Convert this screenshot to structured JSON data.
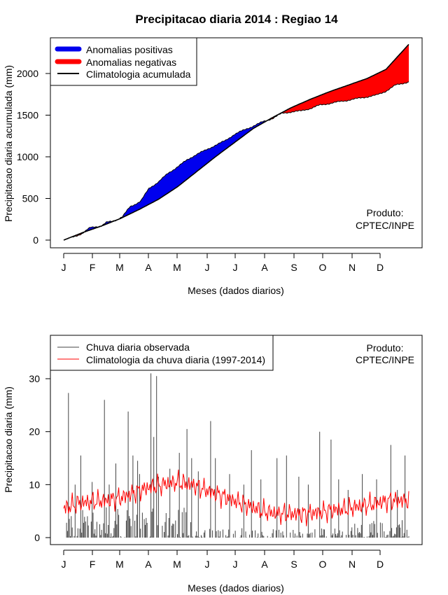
{
  "page_title": "Precipitacao diaria 2014 : Regiao 14",
  "chart_data": [
    {
      "type": "area",
      "ylabel": "Precipitacao diaria acumulada (mm)",
      "xlabel": "Meses (dados diarios)",
      "ylim": [
        0,
        2350
      ],
      "yticks": [
        0,
        500,
        1000,
        1500,
        2000
      ],
      "month_labels": [
        "J",
        "F",
        "M",
        "A",
        "M",
        "J",
        "J",
        "A",
        "S",
        "O",
        "N",
        "D"
      ],
      "legend": [
        {
          "label": "Anomalias positivas",
          "color": "#0000ee"
        },
        {
          "label": "Anomalias negativas",
          "color": "#ff0000"
        },
        {
          "label": "Climatologia acumulada",
          "color": "#000000"
        }
      ],
      "credit": [
        "Produto:",
        "CPTEC/INPE"
      ],
      "climatology_points": [
        [
          0,
          0
        ],
        [
          20,
          90
        ],
        [
          40,
          170
        ],
        [
          60,
          260
        ],
        [
          80,
          370
        ],
        [
          100,
          490
        ],
        [
          120,
          640
        ],
        [
          140,
          820
        ],
        [
          160,
          1000
        ],
        [
          180,
          1170
        ],
        [
          200,
          1340
        ],
        [
          220,
          1470
        ],
        [
          240,
          1590
        ],
        [
          260,
          1690
        ],
        [
          280,
          1780
        ],
        [
          300,
          1860
        ],
        [
          320,
          1940
        ],
        [
          340,
          2050
        ],
        [
          364,
          2350
        ]
      ],
      "observed_points": [
        [
          0,
          0
        ],
        [
          10,
          40
        ],
        [
          20,
          80
        ],
        [
          28,
          150
        ],
        [
          32,
          160
        ],
        [
          40,
          170
        ],
        [
          45,
          210
        ],
        [
          55,
          240
        ],
        [
          62,
          280
        ],
        [
          70,
          400
        ],
        [
          80,
          460
        ],
        [
          82,
          480
        ],
        [
          90,
          620
        ],
        [
          100,
          700
        ],
        [
          110,
          800
        ],
        [
          120,
          880
        ],
        [
          130,
          960
        ],
        [
          140,
          1030
        ],
        [
          150,
          1080
        ],
        [
          160,
          1140
        ],
        [
          170,
          1190
        ],
        [
          180,
          1270
        ],
        [
          190,
          1320
        ],
        [
          200,
          1370
        ],
        [
          210,
          1420
        ],
        [
          220,
          1460
        ],
        [
          230,
          1520
        ],
        [
          240,
          1540
        ],
        [
          250,
          1550
        ],
        [
          260,
          1580
        ],
        [
          270,
          1620
        ],
        [
          280,
          1640
        ],
        [
          290,
          1660
        ],
        [
          300,
          1680
        ],
        [
          310,
          1700
        ],
        [
          320,
          1720
        ],
        [
          330,
          1740
        ],
        [
          340,
          1790
        ],
        [
          350,
          1860
        ],
        [
          364,
          1900
        ]
      ]
    },
    {
      "type": "bar",
      "ylabel": "Precipitacao diaria (mm)",
      "xlabel": "Meses (dados diarios)",
      "ylim": [
        0,
        38
      ],
      "yticks": [
        0,
        10,
        20,
        30
      ],
      "month_labels": [
        "J",
        "F",
        "M",
        "A",
        "M",
        "J",
        "J",
        "A",
        "S",
        "O",
        "N",
        "D"
      ],
      "legend": [
        {
          "label": "Chuva diaria observada",
          "color": "#444444"
        },
        {
          "label": "Climatologia da chuva diaria (1997-2014)",
          "color": "#ff0000"
        }
      ],
      "credit": [
        "Produto:",
        "CPTEC/INPE"
      ],
      "peaks": [
        [
          5,
          27.3
        ],
        [
          12,
          10
        ],
        [
          18,
          15.5
        ],
        [
          30,
          10.5
        ],
        [
          43,
          26
        ],
        [
          48,
          10
        ],
        [
          55,
          14
        ],
        [
          68,
          23.8
        ],
        [
          73,
          15.5
        ],
        [
          78,
          14.5
        ],
        [
          80,
          12
        ],
        [
          92,
          31
        ],
        [
          95,
          19
        ],
        [
          98,
          30.5
        ],
        [
          100,
          11.5
        ],
        [
          112,
          13
        ],
        [
          122,
          16
        ],
        [
          130,
          20.5
        ],
        [
          135,
          15
        ],
        [
          142,
          12.5
        ],
        [
          155,
          22
        ],
        [
          160,
          15
        ],
        [
          175,
          12
        ],
        [
          190,
          10
        ],
        [
          198,
          16.5
        ],
        [
          208,
          11
        ],
        [
          225,
          15
        ],
        [
          235,
          15.5
        ],
        [
          248,
          11.5
        ],
        [
          258,
          10
        ],
        [
          270,
          20
        ],
        [
          282,
          18.5
        ],
        [
          290,
          11
        ],
        [
          300,
          9
        ],
        [
          315,
          12
        ],
        [
          330,
          11
        ],
        [
          345,
          17.5
        ],
        [
          352,
          9
        ],
        [
          360,
          15.5
        ]
      ],
      "climatology_trend": [
        [
          0,
          5.5
        ],
        [
          15,
          6.5
        ],
        [
          30,
          6.8
        ],
        [
          45,
          7.0
        ],
        [
          60,
          7.5
        ],
        [
          75,
          8.5
        ],
        [
          90,
          9.5
        ],
        [
          105,
          10
        ],
        [
          120,
          10.5
        ],
        [
          135,
          10
        ],
        [
          150,
          9
        ],
        [
          165,
          8
        ],
        [
          180,
          7
        ],
        [
          195,
          6
        ],
        [
          210,
          5
        ],
        [
          225,
          4.5
        ],
        [
          240,
          4.5
        ],
        [
          255,
          4.5
        ],
        [
          270,
          4.8
        ],
        [
          285,
          5.2
        ],
        [
          300,
          5.5
        ],
        [
          315,
          6
        ],
        [
          330,
          6.5
        ],
        [
          345,
          7
        ],
        [
          364,
          7
        ]
      ]
    }
  ]
}
